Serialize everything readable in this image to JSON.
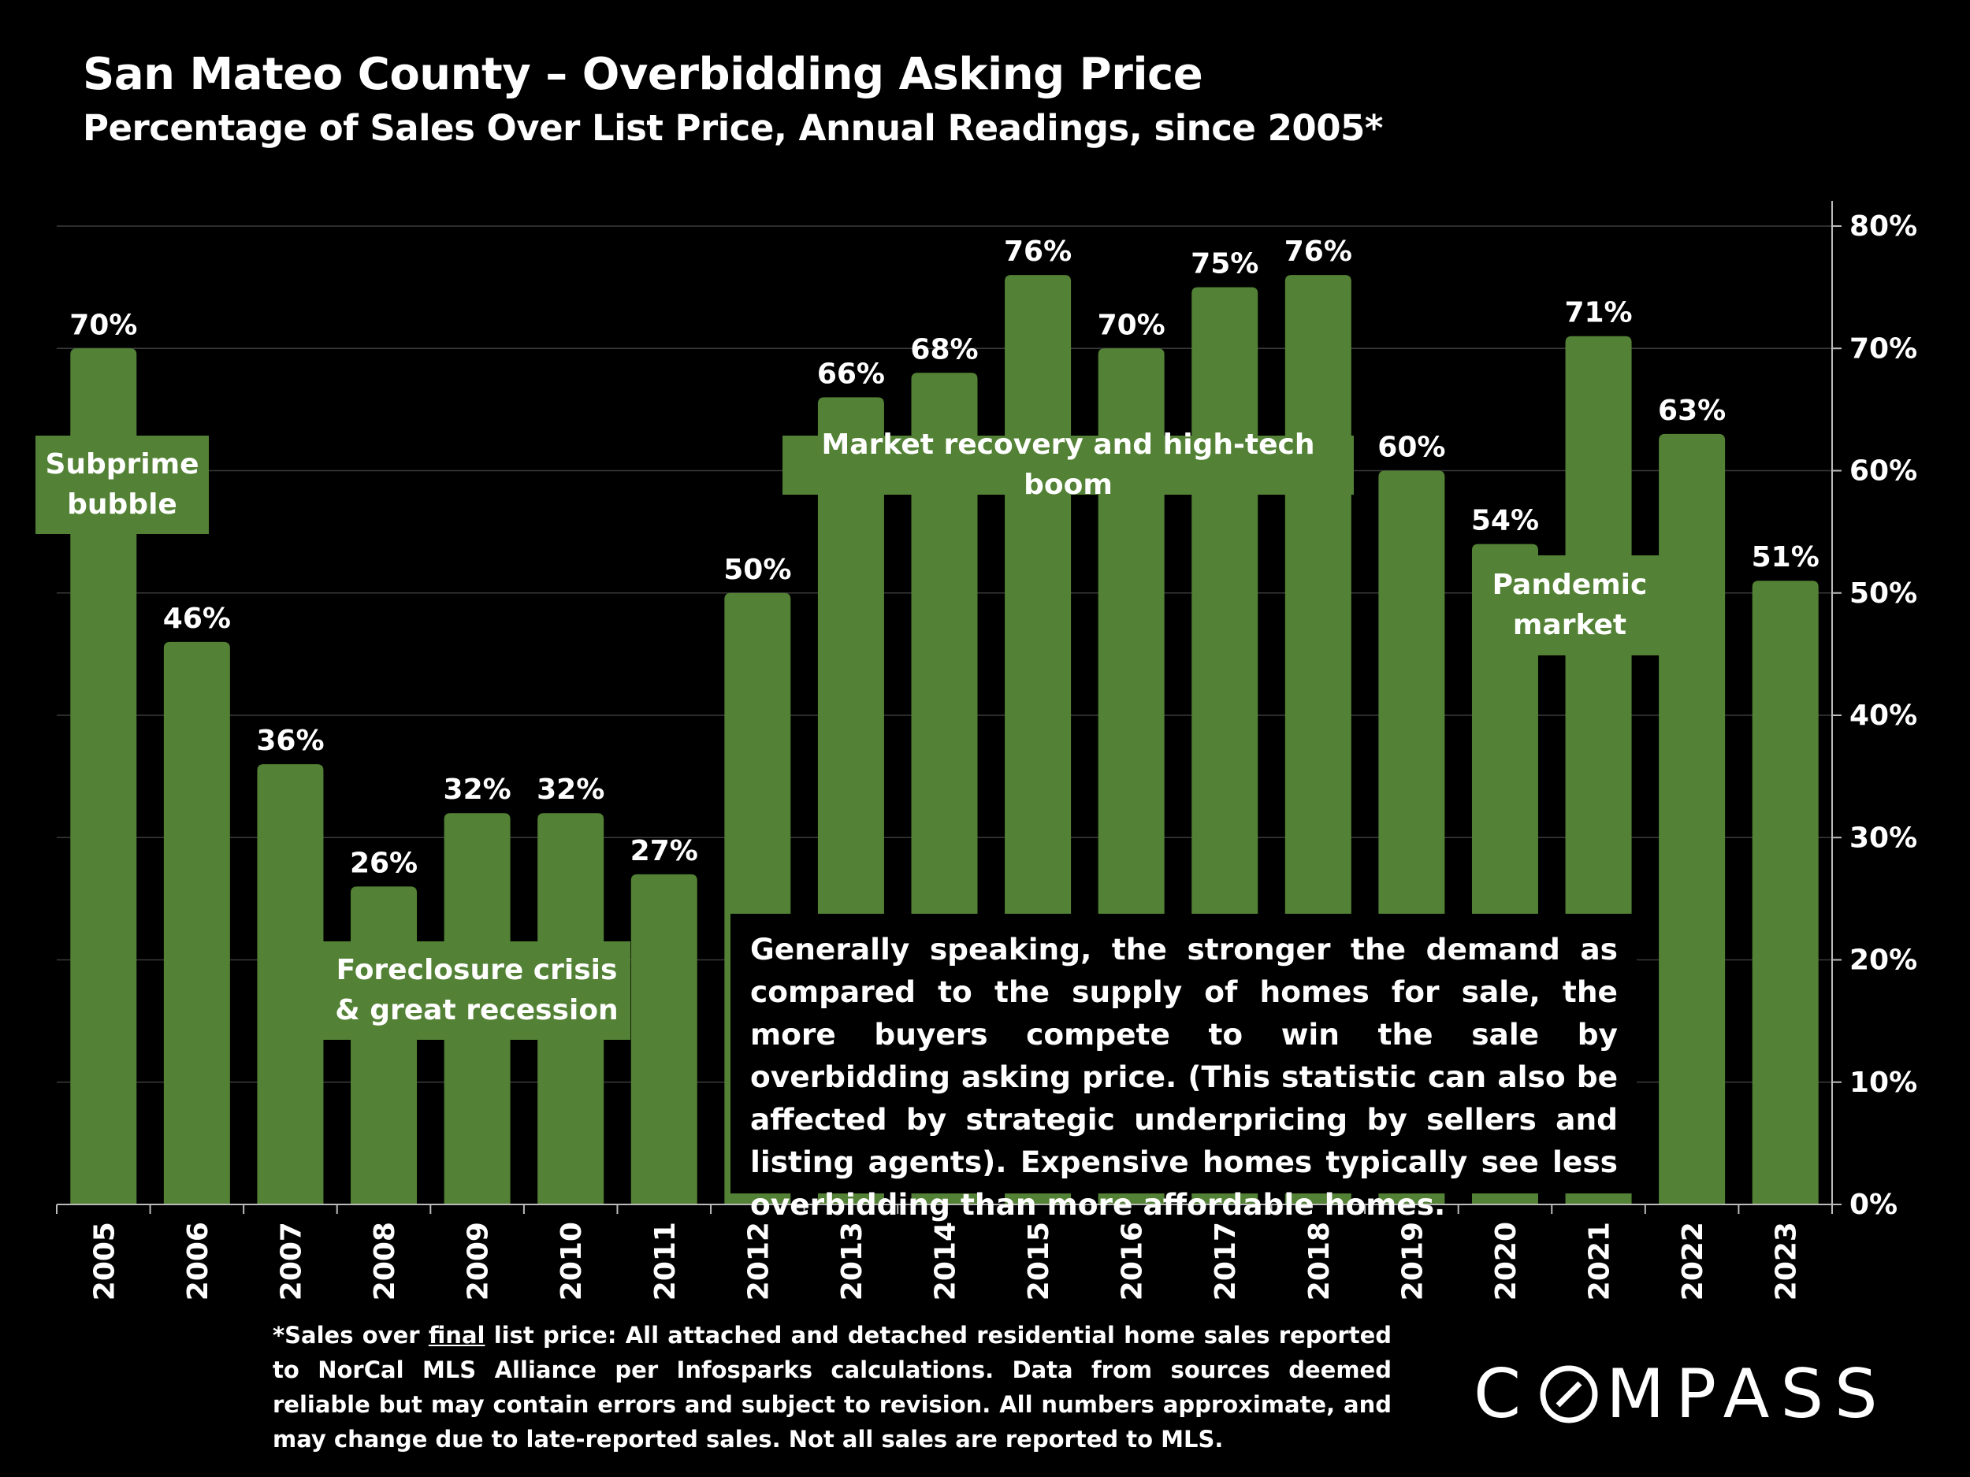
{
  "title": "San Mateo County – Overbidding Asking Price",
  "subtitle": "Percentage of Sales Over List Price, Annual Readings, since 2005*",
  "colors": {
    "bar": "#538135",
    "background": "#000000",
    "grid": "#3a3a3a",
    "text": "#ffffff"
  },
  "chart_data": {
    "type": "bar",
    "categories": [
      "2005",
      "2006",
      "2007",
      "2008",
      "2009",
      "2010",
      "2011",
      "2012",
      "2013",
      "2014",
      "2015",
      "2016",
      "2017",
      "2018",
      "2019",
      "2020",
      "2021",
      "2022",
      "2023"
    ],
    "values": [
      70,
      46,
      36,
      26,
      32,
      32,
      27,
      50,
      66,
      68,
      76,
      70,
      75,
      76,
      60,
      54,
      71,
      63,
      51
    ],
    "value_labels": [
      "70%",
      "46%",
      "36%",
      "26%",
      "32%",
      "32%",
      "27%",
      "50%",
      "66%",
      "68%",
      "76%",
      "70%",
      "75%",
      "76%",
      "60%",
      "54%",
      "71%",
      "63%",
      "51%"
    ],
    "ylim": [
      0,
      80
    ],
    "yaxis_position": "right",
    "yticks": [
      0,
      10,
      20,
      30,
      40,
      50,
      60,
      70,
      80
    ],
    "ytick_labels": [
      "0%",
      "10%",
      "20%",
      "30%",
      "40%",
      "50%",
      "60%",
      "70%",
      "80%"
    ],
    "grid": true,
    "xlabel": "",
    "ylabel": ""
  },
  "annotations": {
    "subprime": "Subprime bubble",
    "subprime_line1": "Subprime",
    "subprime_line2": "bubble",
    "foreclosure_line1": "Foreclosure crisis",
    "foreclosure_line2": "& great recession",
    "recovery": "Market recovery and high-tech boom",
    "pandemic_line1": "Pandemic",
    "pandemic_line2": "market"
  },
  "note": "Generally speaking, the stronger the demand as compared to the supply of homes for sale, the more buyers compete to win the sale by overbidding asking price. (This statistic can also be affected by strategic underpricing by sellers and listing agents). Expensive homes typically see less overbidding than more affordable homes.",
  "footnote": {
    "prefix": "*Sales over ",
    "underlined": "final",
    "rest": " list price: All attached and detached residential home sales reported to NorCal MLS Alliance per Infosparks calculations. Data from sources deemed reliable but may contain errors and subject to revision. All numbers approximate, and may change due to late-reported sales. Not all sales are reported to MLS."
  },
  "logo": {
    "text_left": "C",
    "text_right": "MPASS"
  }
}
